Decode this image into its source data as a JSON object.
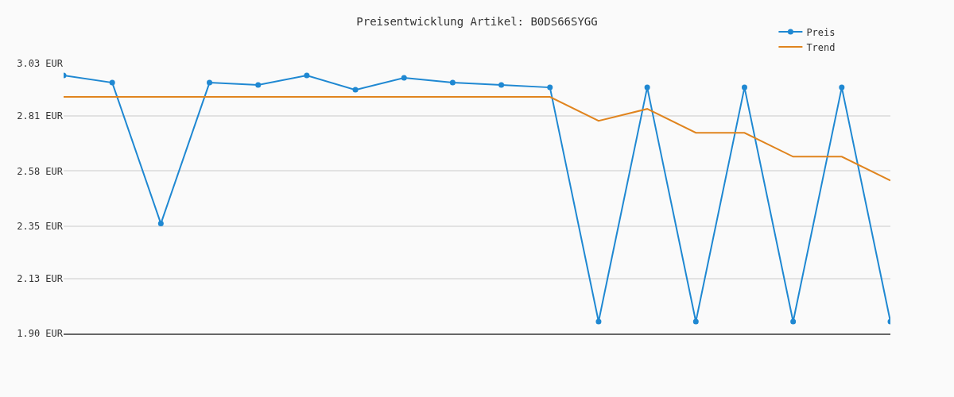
{
  "chart_data": {
    "type": "line",
    "title": "Preisentwicklung Artikel: B0DS66SYGG",
    "categories": [
      null,
      null,
      null,
      null,
      null,
      null,
      null,
      null,
      null,
      null,
      null,
      null,
      null,
      null,
      null,
      null,
      null,
      null
    ],
    "series": [
      {
        "name": "Preis",
        "color": "#1f88d2",
        "marker": "circle",
        "values": [
          2.98,
          2.95,
          2.36,
          2.95,
          2.94,
          2.98,
          2.92,
          2.97,
          2.95,
          2.94,
          2.93,
          1.95,
          2.93,
          1.95,
          2.93,
          1.95,
          2.93,
          1.95
        ]
      },
      {
        "name": "Trend",
        "color": "#e0841e",
        "marker": "none",
        "values": [
          2.89,
          2.89,
          2.89,
          2.89,
          2.89,
          2.89,
          2.89,
          2.89,
          2.89,
          2.89,
          2.89,
          2.79,
          2.84,
          2.74,
          2.74,
          2.64,
          2.64,
          2.54
        ]
      }
    ],
    "ylim": [
      1.9,
      3.03
    ],
    "yticks": [
      {
        "value": 1.9,
        "label": "1.90 EUR"
      },
      {
        "value": 2.13,
        "label": "2.13 EUR"
      },
      {
        "value": 2.35,
        "label": "2.35 EUR"
      },
      {
        "value": 2.58,
        "label": "2.58 EUR"
      },
      {
        "value": 2.81,
        "label": "2.81 EUR"
      },
      {
        "value": 3.03,
        "label": "3.03 EUR"
      }
    ],
    "grid": "y",
    "legend": "top right",
    "tick_labels": "y"
  }
}
